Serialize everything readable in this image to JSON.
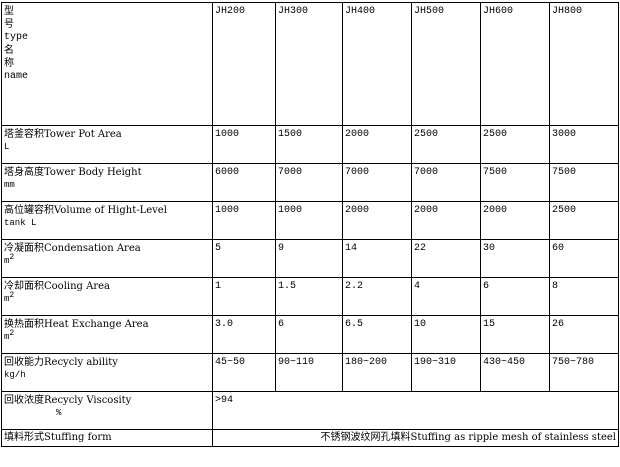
{
  "header": {
    "label_lines": [
      "型",
      "号",
      "type",
      "名",
      "称",
      "name"
    ],
    "models": [
      "JH200",
      "JH300",
      "JH400",
      "JH500",
      "JH600",
      "JH800"
    ]
  },
  "rows": [
    {
      "label": "塔釜容积Tower Pot Area",
      "unit": "L",
      "values": [
        "1000",
        "1500",
        "2000",
        "2500",
        "2500",
        "3000"
      ]
    },
    {
      "label": "塔身高度Tower Body Height",
      "unit": "mm",
      "values": [
        "6000",
        "7000",
        "7000",
        "7000",
        "7500",
        "7500"
      ]
    },
    {
      "label": "高位罐容积Volume of Hight-Level",
      "unit": "tank L",
      "values": [
        "1000",
        "1000",
        "2000",
        "2000",
        "2000",
        "2500"
      ]
    },
    {
      "label": "冷凝面积Condensation Area",
      "unit": "m",
      "unit_sup": "2",
      "values": [
        "5",
        "9",
        "14",
        "22",
        "30",
        "60"
      ]
    },
    {
      "label": "冷却面积Cooling Area",
      "unit": "m",
      "unit_sup": "2",
      "values": [
        "1",
        "1.5",
        "2.2",
        "4",
        "6",
        "8"
      ]
    },
    {
      "label": "换热面积Heat Exchange Area",
      "unit": "m",
      "unit_sup": "2",
      "values": [
        "3.0",
        "6",
        "6.5",
        "10",
        "15",
        "26"
      ]
    },
    {
      "label": "回收能力Recycly ability",
      "unit": "kg/h",
      "values": [
        "45~50",
        "90~110",
        "180~200",
        "190~310",
        "430~450",
        "750~780"
      ]
    }
  ],
  "viscosity": {
    "label": "回收浓度Recycly Viscosity",
    "unit": "%",
    "value": ">94"
  },
  "stuffing": {
    "label": "填料形式Stuffing form",
    "value": "不锈钢波纹网孔填料Stuffing as ripple mesh of stainless steel"
  }
}
